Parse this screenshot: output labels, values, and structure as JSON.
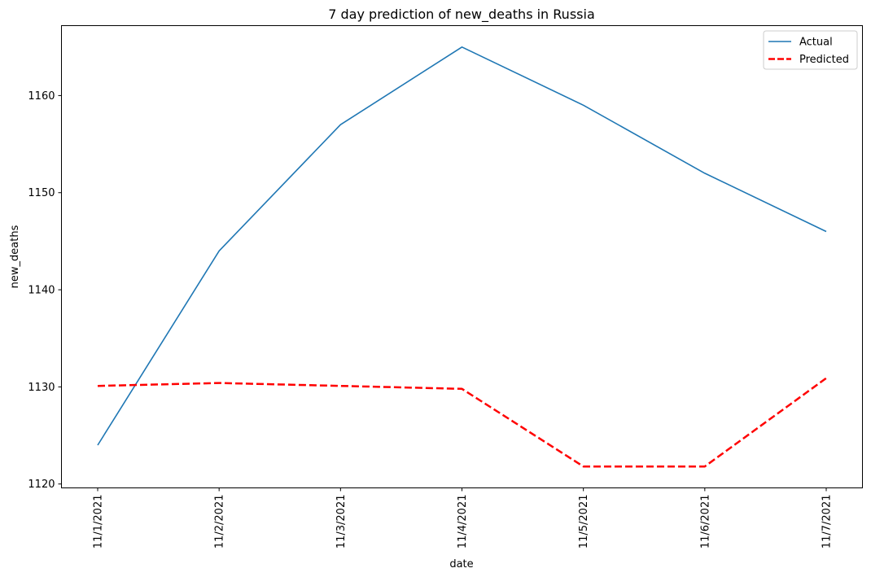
{
  "chart_data": {
    "type": "line",
    "title": "7 day prediction of new_deaths in Russia",
    "xlabel": "date",
    "ylabel": "new_deaths",
    "categories": [
      "11/1/2021",
      "11/2/2021",
      "11/3/2021",
      "11/4/2021",
      "11/5/2021",
      "11/6/2021",
      "11/7/2021"
    ],
    "ylim": [
      1119.6,
      1167.2
    ],
    "yticks": [
      1120,
      1130,
      1140,
      1150,
      1160
    ],
    "grid": false,
    "legend_position": "top-right",
    "series": [
      {
        "name": "Actual",
        "values": [
          1124,
          1144,
          1157,
          1165,
          1159,
          1152,
          1146
        ],
        "color": "#1f77b4",
        "style": "solid"
      },
      {
        "name": "Predicted",
        "values": [
          1130.1,
          1130.4,
          1130.1,
          1129.8,
          1121.8,
          1121.8,
          1130.9
        ],
        "color": "#ff0000",
        "style": "dashed"
      }
    ]
  }
}
